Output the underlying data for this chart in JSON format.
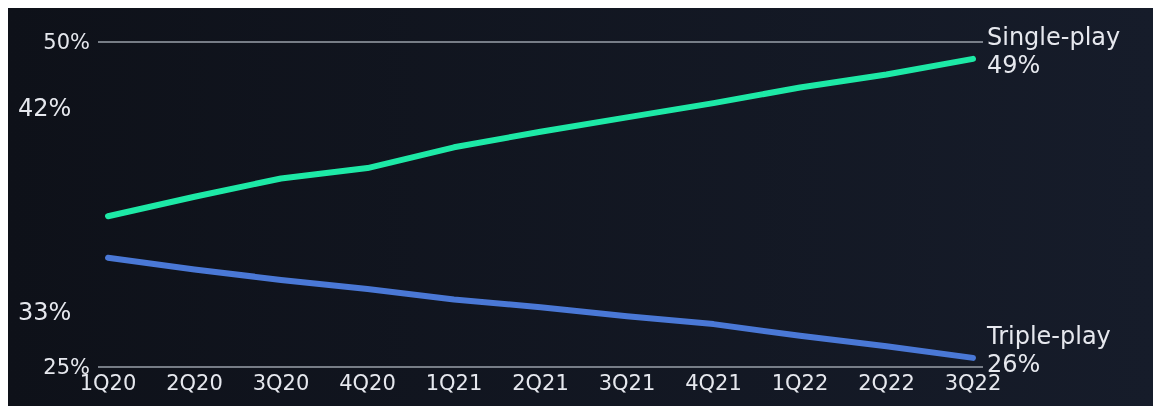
{
  "chart_data": {
    "type": "line",
    "categories": [
      "1Q20",
      "2Q20",
      "3Q20",
      "4Q20",
      "1Q21",
      "2Q21",
      "3Q21",
      "4Q21",
      "1Q22",
      "2Q22",
      "3Q22"
    ],
    "series": [
      {
        "name": "Single-play",
        "color": "#1de9a6",
        "values": [
          36.6,
          38.1,
          39.5,
          40.3,
          41.9,
          43.1,
          44.2,
          45.3,
          46.5,
          47.5,
          48.7
        ],
        "value_labels": [
          null,
          null,
          null,
          null,
          null,
          null,
          null,
          null,
          null,
          null,
          "49%"
        ]
      },
      {
        "name": "Triple-play",
        "color": "#4a78d6",
        "values": [
          33.4,
          32.5,
          31.7,
          31.0,
          30.2,
          29.6,
          28.9,
          28.3,
          27.4,
          26.6,
          25.7
        ],
        "value_labels": [
          null,
          null,
          null,
          null,
          null,
          null,
          null,
          null,
          null,
          null,
          "26%"
        ]
      }
    ],
    "ylim": [
      25,
      50
    ],
    "yticks": [
      {
        "value": 25,
        "label": "25%"
      },
      {
        "value": 50,
        "label": "50%"
      }
    ],
    "ref_lines": [
      {
        "axis": "y",
        "value": 50,
        "color": "#9aa0aa"
      }
    ],
    "marker": "none",
    "line_style": "solid",
    "annotations": [
      "42%",
      "33%"
    ]
  }
}
